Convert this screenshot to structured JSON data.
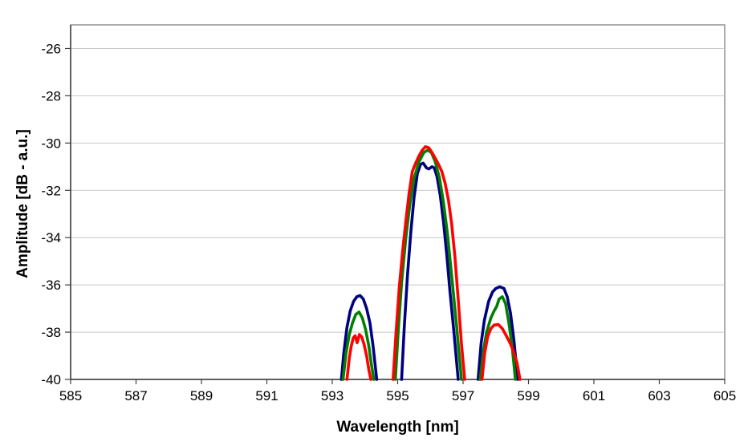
{
  "chart_data": {
    "type": "line",
    "title": "",
    "xlabel": "Wavelength [nm]",
    "ylabel": "Amplitude [dB - a.u.]",
    "xlim": [
      585,
      605
    ],
    "ylim": [
      -40,
      -25
    ],
    "grid": "horizontal-major-on",
    "legend": "none",
    "x_ticks": [
      585,
      587,
      589,
      591,
      593,
      595,
      597,
      599,
      601,
      603,
      605
    ],
    "y_ticks": [
      -26,
      -28,
      -30,
      -32,
      -34,
      -36,
      -38,
      -40
    ],
    "gridline_values": [
      -26,
      -28,
      -30,
      -32,
      -34,
      -36,
      -38
    ],
    "colors": {
      "gridline": "#c8c8c8",
      "plot_border": "#909090",
      "axis_line": "#3f3f3f",
      "tick": "#3f3f3f",
      "label": "#000000",
      "background": "#ffffff"
    },
    "series": [
      {
        "name": "series-blue",
        "color": "#000080",
        "stroke_width": 3.6,
        "segments": [
          [
            [
              593.28,
              -40
            ],
            [
              593.35,
              -38.9
            ],
            [
              593.45,
              -37.8
            ],
            [
              593.55,
              -37.1
            ],
            [
              593.65,
              -36.7
            ],
            [
              593.75,
              -36.5
            ],
            [
              593.85,
              -36.45
            ],
            [
              593.95,
              -36.6
            ],
            [
              594.05,
              -37.0
            ],
            [
              594.15,
              -37.6
            ],
            [
              594.25,
              -38.6
            ],
            [
              594.36,
              -40
            ]
          ],
          [
            [
              595.12,
              -40
            ],
            [
              595.2,
              -37.8
            ],
            [
              595.3,
              -35.6
            ],
            [
              595.4,
              -33.8
            ],
            [
              595.5,
              -32.3
            ],
            [
              595.6,
              -31.3
            ],
            [
              595.7,
              -30.9
            ],
            [
              595.78,
              -30.85
            ],
            [
              595.88,
              -31.05
            ],
            [
              595.95,
              -31.1
            ],
            [
              596.05,
              -31.0
            ],
            [
              596.12,
              -31.05
            ],
            [
              596.2,
              -31.4
            ],
            [
              596.3,
              -32.2
            ],
            [
              596.4,
              -33.3
            ],
            [
              596.5,
              -34.7
            ],
            [
              596.6,
              -36.3
            ],
            [
              596.72,
              -38.0
            ],
            [
              596.85,
              -40
            ]
          ],
          [
            [
              597.46,
              -40
            ],
            [
              597.55,
              -38.5
            ],
            [
              597.65,
              -37.5
            ],
            [
              597.78,
              -36.7
            ],
            [
              597.9,
              -36.3
            ],
            [
              598.0,
              -36.15
            ],
            [
              598.12,
              -36.08
            ],
            [
              598.25,
              -36.15
            ],
            [
              598.35,
              -36.5
            ],
            [
              598.45,
              -37.2
            ],
            [
              598.55,
              -38.3
            ],
            [
              598.67,
              -40
            ]
          ]
        ]
      },
      {
        "name": "series-green",
        "color": "#008000",
        "stroke_width": 3.6,
        "segments": [
          [
            [
              593.33,
              -40
            ],
            [
              593.42,
              -38.9
            ],
            [
              593.52,
              -38.1
            ],
            [
              593.62,
              -37.6
            ],
            [
              593.72,
              -37.25
            ],
            [
              593.82,
              -37.15
            ],
            [
              593.92,
              -37.4
            ],
            [
              594.02,
              -37.9
            ],
            [
              594.12,
              -38.6
            ],
            [
              594.2,
              -39.4
            ],
            [
              594.27,
              -40
            ]
          ],
          [
            [
              594.93,
              -40
            ],
            [
              595.02,
              -37.9
            ],
            [
              595.12,
              -35.9
            ],
            [
              595.25,
              -34.0
            ],
            [
              595.38,
              -32.5
            ],
            [
              595.5,
              -31.5
            ],
            [
              595.65,
              -30.8
            ],
            [
              595.8,
              -30.4
            ],
            [
              595.92,
              -30.3
            ],
            [
              596.03,
              -30.4
            ],
            [
              596.15,
              -30.8
            ],
            [
              596.28,
              -31.5
            ],
            [
              596.4,
              -32.5
            ],
            [
              596.52,
              -33.8
            ],
            [
              596.65,
              -35.6
            ],
            [
              596.8,
              -37.7
            ],
            [
              596.95,
              -40
            ]
          ],
          [
            [
              597.52,
              -40
            ],
            [
              597.62,
              -38.8
            ],
            [
              597.72,
              -38.0
            ],
            [
              597.85,
              -37.4
            ],
            [
              597.95,
              -37.1
            ],
            [
              598.03,
              -36.9
            ],
            [
              598.1,
              -36.6
            ],
            [
              598.2,
              -36.5
            ],
            [
              598.3,
              -36.8
            ],
            [
              598.4,
              -37.6
            ],
            [
              598.5,
              -38.6
            ],
            [
              598.6,
              -40
            ]
          ]
        ]
      },
      {
        "name": "series-red",
        "color": "#ff0000",
        "stroke_width": 3.6,
        "segments": [
          [
            [
              593.45,
              -40
            ],
            [
              593.52,
              -39.1
            ],
            [
              593.58,
              -38.6
            ],
            [
              593.64,
              -38.25
            ],
            [
              593.7,
              -38.15
            ],
            [
              593.76,
              -38.45
            ],
            [
              593.83,
              -38.1
            ],
            [
              593.9,
              -38.2
            ],
            [
              593.97,
              -38.5
            ],
            [
              594.05,
              -39.0
            ],
            [
              594.12,
              -39.6
            ],
            [
              594.18,
              -40
            ]
          ],
          [
            [
              594.86,
              -40
            ],
            [
              594.95,
              -38.0
            ],
            [
              595.05,
              -36.1
            ],
            [
              595.15,
              -34.6
            ],
            [
              595.25,
              -33.3
            ],
            [
              595.35,
              -32.1
            ],
            [
              595.45,
              -31.2
            ],
            [
              595.55,
              -30.85
            ],
            [
              595.65,
              -30.55
            ],
            [
              595.75,
              -30.3
            ],
            [
              595.85,
              -30.15
            ],
            [
              595.95,
              -30.2
            ],
            [
              596.05,
              -30.4
            ],
            [
              596.15,
              -30.65
            ],
            [
              596.25,
              -30.9
            ],
            [
              596.35,
              -31.2
            ],
            [
              596.45,
              -31.7
            ],
            [
              596.55,
              -32.4
            ],
            [
              596.65,
              -33.4
            ],
            [
              596.75,
              -34.8
            ],
            [
              596.85,
              -36.6
            ],
            [
              596.95,
              -38.5
            ],
            [
              597.05,
              -40
            ]
          ],
          [
            [
              597.58,
              -40
            ],
            [
              597.66,
              -38.9
            ],
            [
              597.75,
              -38.2
            ],
            [
              597.85,
              -37.85
            ],
            [
              597.95,
              -37.7
            ],
            [
              598.08,
              -37.68
            ],
            [
              598.2,
              -37.85
            ],
            [
              598.32,
              -38.15
            ],
            [
              598.45,
              -38.5
            ],
            [
              598.55,
              -38.85
            ],
            [
              598.65,
              -39.3
            ],
            [
              598.74,
              -40
            ]
          ]
        ]
      }
    ]
  },
  "layout_labels": {
    "x_axis_title": "Wavelength [nm]",
    "y_axis_title": "Amplitude [dB - a.u.]"
  }
}
